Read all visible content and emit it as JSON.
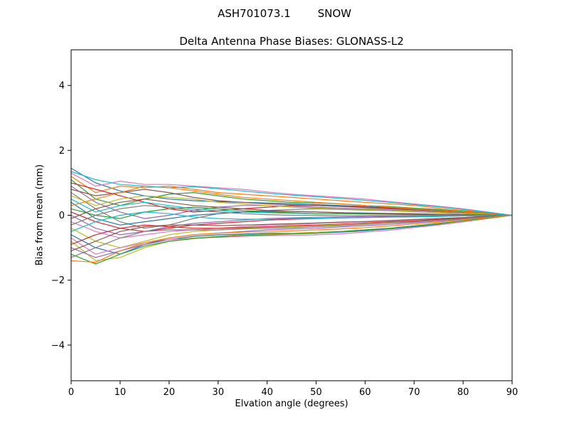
{
  "figure": {
    "suptitle_left": "ASH701073.1",
    "suptitle_right": "SNOW"
  },
  "chart_data": {
    "type": "line",
    "suptitle": "ASH701073.1     SNOW",
    "title": "Delta Antenna Phase Biases: GLONASS-L2",
    "xlabel": "Elvation angle (degrees)",
    "ylabel": "Bias from mean (mm)",
    "xlim": [
      0,
      90
    ],
    "ylim": [
      -5.1,
      5.1
    ],
    "xticks": [
      0,
      10,
      20,
      30,
      40,
      50,
      60,
      70,
      80,
      90
    ],
    "yticks": [
      -4,
      -2,
      0,
      2,
      4
    ],
    "ytick_labels": [
      "−4",
      "−2",
      "0",
      "2",
      "4"
    ],
    "grid": false,
    "legend": "none",
    "x": [
      0,
      5,
      10,
      15,
      20,
      25,
      30,
      35,
      40,
      45,
      50,
      55,
      60,
      65,
      70,
      75,
      80,
      85,
      90
    ],
    "series": [
      {
        "color": "#1f77b4",
        "values": [
          1.45,
          1.0,
          0.75,
          0.6,
          0.5,
          0.45,
          0.42,
          0.4,
          0.38,
          0.36,
          0.33,
          0.3,
          0.27,
          0.24,
          0.2,
          0.16,
          0.12,
          0.06,
          0
        ]
      },
      {
        "color": "#e377c2",
        "values": [
          1.3,
          0.9,
          1.05,
          0.95,
          0.95,
          0.9,
          0.85,
          0.8,
          0.72,
          0.65,
          0.6,
          0.55,
          0.5,
          0.42,
          0.35,
          0.28,
          0.2,
          0.1,
          0
        ]
      },
      {
        "color": "#ff7f0e",
        "values": [
          1.2,
          0.7,
          0.9,
          0.85,
          0.9,
          0.8,
          0.7,
          0.65,
          0.6,
          0.55,
          0.5,
          0.45,
          0.4,
          0.35,
          0.3,
          0.22,
          0.15,
          0.08,
          0
        ]
      },
      {
        "color": "#2ca02c",
        "values": [
          1.1,
          0.5,
          0.3,
          0.5,
          0.65,
          0.7,
          0.6,
          0.5,
          0.45,
          0.4,
          0.38,
          0.35,
          0.3,
          0.27,
          0.22,
          0.18,
          0.12,
          0.06,
          0
        ]
      },
      {
        "color": "#d62728",
        "values": [
          1.0,
          0.8,
          0.6,
          0.4,
          0.2,
          0.1,
          0.15,
          0.2,
          0.25,
          0.3,
          0.3,
          0.28,
          0.25,
          0.22,
          0.18,
          0.14,
          0.1,
          0.05,
          0
        ]
      },
      {
        "color": "#9467bd",
        "values": [
          0.9,
          0.4,
          0.1,
          -0.1,
          0,
          0.15,
          0.25,
          0.3,
          0.3,
          0.28,
          0.25,
          0.22,
          0.2,
          0.17,
          0.14,
          0.1,
          0.07,
          0.03,
          0
        ]
      },
      {
        "color": "#8c564b",
        "values": [
          0.8,
          0.6,
          0.7,
          0.8,
          0.7,
          0.55,
          0.45,
          0.4,
          0.35,
          0.32,
          0.3,
          0.27,
          0.24,
          0.2,
          0.17,
          0.13,
          0.09,
          0.04,
          0
        ]
      },
      {
        "color": "#7f7f7f",
        "values": [
          0.7,
          0.2,
          -0.2,
          -0.4,
          -0.3,
          -0.1,
          0.05,
          0.1,
          0.15,
          0.18,
          0.2,
          0.18,
          0.16,
          0.14,
          0.11,
          0.08,
          0.05,
          0.02,
          0
        ]
      },
      {
        "color": "#bcbd22",
        "values": [
          0.6,
          0.3,
          0.5,
          0.6,
          0.55,
          0.5,
          0.4,
          0.35,
          0.3,
          0.25,
          0.22,
          0.2,
          0.18,
          0.15,
          0.12,
          0.09,
          0.06,
          0.03,
          0
        ]
      },
      {
        "color": "#17becf",
        "values": [
          0.5,
          0.1,
          0.3,
          0.4,
          0.3,
          0.2,
          0.15,
          0.1,
          0.08,
          0.06,
          0.05,
          0.05,
          0.04,
          0.04,
          0.03,
          0.02,
          0.02,
          0.01,
          0
        ]
      },
      {
        "color": "#1f77b4",
        "values": [
          0.4,
          -0.1,
          -0.3,
          -0.2,
          -0.1,
          0,
          0.05,
          0.1,
          0.12,
          0.12,
          0.1,
          0.08,
          0.07,
          0.06,
          0.05,
          0.03,
          0.02,
          0.01,
          0
        ]
      },
      {
        "color": "#ff7f0e",
        "values": [
          0.3,
          0.5,
          0.7,
          0.9,
          0.85,
          0.75,
          0.65,
          0.55,
          0.5,
          0.45,
          0.4,
          0.35,
          0.3,
          0.25,
          0.2,
          0.15,
          0.1,
          0.05,
          0
        ]
      },
      {
        "color": "#2ca02c",
        "values": [
          0.2,
          0,
          -0.1,
          0.1,
          0.2,
          0.25,
          0.2,
          0.15,
          0.1,
          0.08,
          0.05,
          0.05,
          0.04,
          0.03,
          0.02,
          0.02,
          0.01,
          0,
          0
        ]
      },
      {
        "color": "#d62728",
        "values": [
          0.1,
          -0.2,
          -0.4,
          -0.5,
          -0.4,
          -0.3,
          -0.25,
          -0.2,
          -0.15,
          -0.12,
          -0.1,
          -0.08,
          -0.07,
          -0.05,
          -0.04,
          -0.03,
          -0.02,
          -0.01,
          0
        ]
      },
      {
        "color": "#9467bd",
        "values": [
          0,
          -0.4,
          -0.6,
          -0.5,
          -0.35,
          -0.25,
          -0.2,
          -0.15,
          -0.1,
          -0.08,
          -0.06,
          -0.05,
          -0.04,
          -0.03,
          -0.02,
          -0.02,
          -0.01,
          0,
          0
        ]
      },
      {
        "color": "#8c564b",
        "values": [
          -0.1,
          0.2,
          0.4,
          0.5,
          0.4,
          0.3,
          0.25,
          0.2,
          0.15,
          0.12,
          0.1,
          0.08,
          0.06,
          0.05,
          0.04,
          0.03,
          0.02,
          0.01,
          0
        ]
      },
      {
        "color": "#e377c2",
        "values": [
          -0.2,
          -0.5,
          -0.7,
          -0.6,
          -0.5,
          -0.45,
          -0.4,
          -0.35,
          -0.3,
          -0.28,
          -0.25,
          -0.22,
          -0.2,
          -0.17,
          -0.14,
          -0.1,
          -0.07,
          -0.03,
          0
        ]
      },
      {
        "color": "#7f7f7f",
        "values": [
          -0.3,
          0,
          0.2,
          0.3,
          0.25,
          0.15,
          0.1,
          0.05,
          0.02,
          0,
          0,
          -0.01,
          -0.01,
          -0.01,
          -0.01,
          0,
          0,
          0,
          0
        ]
      },
      {
        "color": "#bcbd22",
        "values": [
          -0.4,
          -0.8,
          -1.0,
          -0.8,
          -0.6,
          -0.5,
          -0.45,
          -0.4,
          -0.38,
          -0.35,
          -0.32,
          -0.3,
          -0.27,
          -0.23,
          -0.19,
          -0.15,
          -0.1,
          -0.05,
          0
        ]
      },
      {
        "color": "#17becf",
        "values": [
          -0.5,
          -0.2,
          0,
          0.1,
          0.05,
          -0.05,
          -0.1,
          -0.12,
          -0.12,
          -0.1,
          -0.09,
          -0.08,
          -0.07,
          -0.06,
          -0.05,
          -0.04,
          -0.02,
          -0.01,
          0
        ]
      },
      {
        "color": "#1f77b4",
        "values": [
          -0.6,
          -1.0,
          -1.2,
          -0.9,
          -0.75,
          -0.65,
          -0.6,
          -0.58,
          -0.55,
          -0.55,
          -0.55,
          -0.52,
          -0.48,
          -0.42,
          -0.35,
          -0.28,
          -0.2,
          -0.1,
          0
        ]
      },
      {
        "color": "#e377c2",
        "values": [
          -0.7,
          -1.2,
          -1.0,
          -0.85,
          -0.75,
          -0.7,
          -0.68,
          -0.65,
          -0.63,
          -0.62,
          -0.6,
          -0.57,
          -0.52,
          -0.46,
          -0.38,
          -0.3,
          -0.2,
          -0.1,
          0
        ]
      },
      {
        "color": "#bcbd22",
        "values": [
          -0.8,
          -1.4,
          -1.3,
          -1.0,
          -0.8,
          -0.7,
          -0.65,
          -0.6,
          -0.58,
          -0.55,
          -0.52,
          -0.5,
          -0.45,
          -0.4,
          -0.33,
          -0.26,
          -0.18,
          -0.09,
          0
        ]
      },
      {
        "color": "#d62728",
        "values": [
          -0.9,
          -0.6,
          -0.4,
          -0.3,
          -0.35,
          -0.4,
          -0.4,
          -0.38,
          -0.35,
          -0.32,
          -0.3,
          -0.27,
          -0.24,
          -0.2,
          -0.17,
          -0.13,
          -0.09,
          -0.04,
          0
        ]
      },
      {
        "color": "#9467bd",
        "values": [
          -1.0,
          -1.3,
          -1.1,
          -0.9,
          -0.7,
          -0.6,
          -0.55,
          -0.5,
          -0.45,
          -0.42,
          -0.4,
          -0.36,
          -0.32,
          -0.28,
          -0.23,
          -0.18,
          -0.12,
          -0.06,
          0
        ]
      },
      {
        "color": "#8c564b",
        "values": [
          -1.1,
          -0.8,
          -0.5,
          -0.35,
          -0.3,
          -0.3,
          -0.32,
          -0.3,
          -0.28,
          -0.26,
          -0.24,
          -0.21,
          -0.19,
          -0.16,
          -0.13,
          -0.1,
          -0.07,
          -0.03,
          0
        ]
      },
      {
        "color": "#2ca02c",
        "values": [
          -1.2,
          -1.5,
          -1.2,
          -0.95,
          -0.8,
          -0.72,
          -0.66,
          -0.62,
          -0.6,
          -0.58,
          -0.55,
          -0.5,
          -0.45,
          -0.4,
          -0.33,
          -0.25,
          -0.17,
          -0.08,
          0
        ]
      },
      {
        "color": "#7f7f7f",
        "values": [
          -1.3,
          -1.0,
          -0.7,
          -0.5,
          -0.45,
          -0.45,
          -0.45,
          -0.42,
          -0.4,
          -0.38,
          -0.35,
          -0.32,
          -0.28,
          -0.24,
          -0.2,
          -0.15,
          -0.1,
          -0.05,
          0
        ]
      },
      {
        "color": "#ff7f0e",
        "values": [
          -1.4,
          -1.45,
          -1.1,
          -0.85,
          -0.7,
          -0.6,
          -0.55,
          -0.52,
          -0.5,
          -0.48,
          -0.45,
          -0.42,
          -0.38,
          -0.33,
          -0.27,
          -0.21,
          -0.14,
          -0.07,
          0
        ]
      },
      {
        "color": "#17becf",
        "values": [
          1.35,
          1.1,
          0.95,
          0.9,
          0.85,
          0.88,
          0.82,
          0.75,
          0.68,
          0.62,
          0.57,
          0.52,
          0.46,
          0.4,
          0.33,
          0.26,
          0.18,
          0.09,
          0
        ]
      }
    ]
  }
}
